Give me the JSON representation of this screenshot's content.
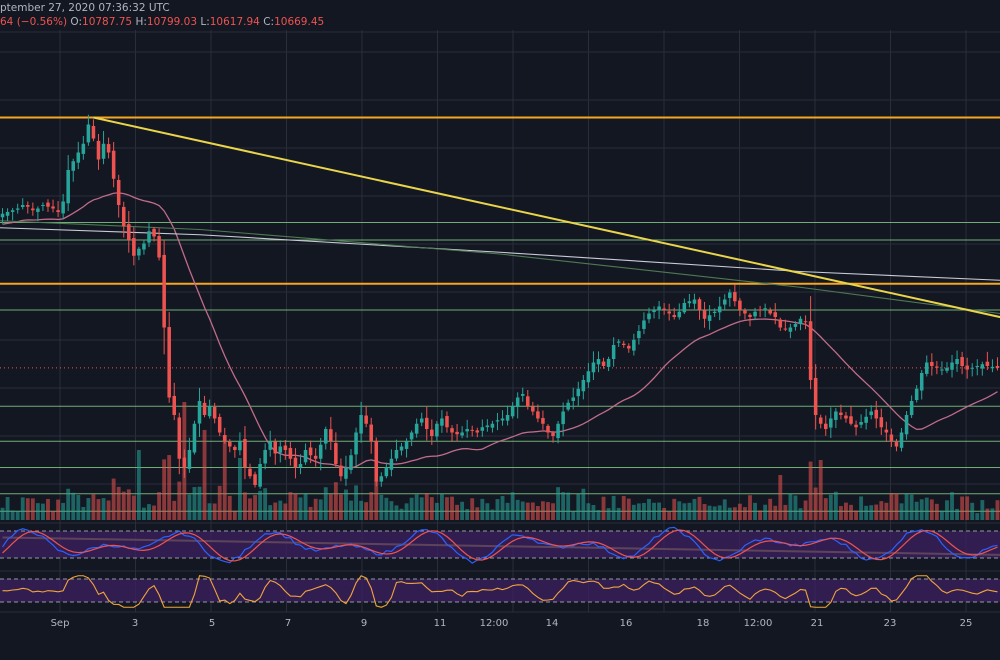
{
  "header": {
    "timestamp": "ptember 27, 2020 07:36:32 UTC",
    "change": "64 (−0.56%)",
    "o_label": "O:",
    "o_value": "10787.75",
    "h_label": "H:",
    "h_value": "10799.03",
    "l_label": "L:",
    "l_value": "10617.94",
    "c_label": "C:",
    "c_value": "10669.45"
  },
  "colors": {
    "background": "#131722",
    "grid": "#2a2e39",
    "up": "#26a69a",
    "down": "#ef5350",
    "ma_pink": "#c06c8a",
    "ma_white": "#c9ccd6",
    "ma_green": "#4e7a52",
    "level_orange": "#f5a623",
    "level_green": "#81c784",
    "trend_yellow": "#e9d44a",
    "stoch_blue": "#2962ff",
    "stoch_red": "#ef5350",
    "rsi_line": "#f2a53b",
    "osc_band": "#3b1f5e"
  },
  "chart_data": {
    "type": "candlestick",
    "instrument_hint": "BTC",
    "x_axis_labels": [
      "Sep",
      "3",
      "5",
      "7",
      "9",
      "11",
      "12:00",
      "14",
      "16",
      "18",
      "12:00",
      "21",
      "23",
      "25"
    ],
    "ylim": [
      9800,
      12600
    ],
    "levels": {
      "orange": [
        12100,
        11150
      ],
      "green": [
        11500,
        11400,
        11000,
        10450,
        10250,
        10100,
        9950,
        9850
      ]
    },
    "trendlines": [
      {
        "name": "descending-resistance",
        "start_index": 18,
        "start_value": 12100,
        "end_index": 199,
        "end_value": 10950
      },
      {
        "name": "lower-support",
        "start_index": 0,
        "start_value": 9700,
        "end_index": 199,
        "end_value": 9600
      }
    ],
    "closes": [
      11550,
      11560,
      11570,
      11580,
      11600,
      11590,
      11570,
      11580,
      11600,
      11590,
      11580,
      11560,
      11620,
      11800,
      11850,
      11900,
      11950,
      12060,
      11980,
      11860,
      11950,
      11900,
      11750,
      11600,
      11480,
      11400,
      11310,
      11350,
      11380,
      11450,
      11420,
      11300,
      10900,
      10500,
      10400,
      10150,
      10100,
      10200,
      10350,
      10480,
      10400,
      10450,
      10380,
      10300,
      10250,
      10220,
      10200,
      10250,
      10100,
      10050,
      10000,
      10120,
      10200,
      10250,
      10180,
      10220,
      10200,
      10150,
      10100,
      10120,
      10200,
      10170,
      10150,
      10230,
      10320,
      10250,
      10120,
      10050,
      10100,
      10170,
      10300,
      10400,
      10350,
      10250,
      10020,
      10050,
      10100,
      10150,
      10200,
      10220,
      10250,
      10300,
      10350,
      10380,
      10320,
      10280,
      10350,
      10380,
      10330,
      10300,
      10290,
      10300,
      10320,
      10310,
      10300,
      10330,
      10340,
      10350,
      10370,
      10380,
      10400,
      10450,
      10500,
      10520,
      10450,
      10420,
      10380,
      10350,
      10300,
      10280,
      10350,
      10420,
      10470,
      10500,
      10550,
      10600,
      10650,
      10700,
      10720,
      10680,
      10720,
      10800,
      10820,
      10800,
      10780,
      10830,
      10880,
      10940,
      10980,
      11000,
      11020,
      11000,
      10980,
      10960,
      10990,
      11040,
      11050,
      11060,
      11000,
      10950,
      10970,
      10990,
      11020,
      11060,
      11100,
      11050,
      11000,
      10980,
      10960,
      10990,
      11000,
      11010,
      10980,
      10960,
      10900,
      10890,
      10900,
      10920,
      10950,
      10930,
      10600,
      10400,
      10350,
      10320,
      10380,
      10420,
      10400,
      10380,
      10350,
      10330,
      10360,
      10390,
      10420,
      10380,
      10330,
      10300,
      10250,
      10220,
      10300,
      10400,
      10480,
      10550,
      10640,
      10700,
      10680,
      10670,
      10660,
      10670,
      10700,
      10720,
      10680,
      10660,
      10670,
      10680,
      10690,
      10680,
      10675,
      10669
    ]
  },
  "oscillators": {
    "stoch": {
      "upper_level": 80,
      "lower_level": 20
    },
    "rsi": {
      "upper_level": 70,
      "lower_level": 30
    }
  }
}
